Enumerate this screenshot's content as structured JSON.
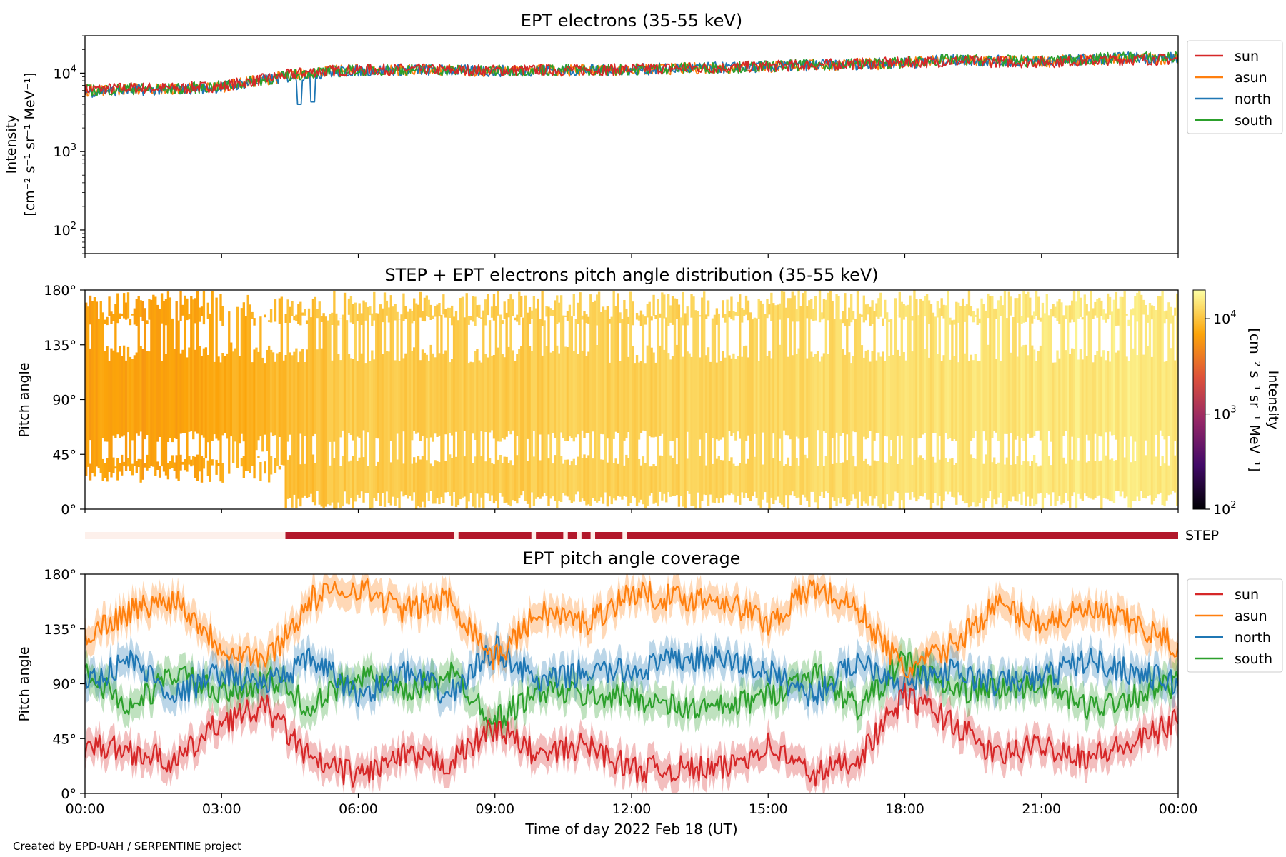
{
  "figure": {
    "credit": "Created by EPD-UAH / SERPENTINE project",
    "xlabel": "Time of day 2022 Feb 18 (UT)",
    "time_ticks": [
      "00:00",
      "03:00",
      "06:00",
      "09:00",
      "12:00",
      "15:00",
      "18:00",
      "21:00",
      "00:00"
    ]
  },
  "chart_data": [
    {
      "type": "line",
      "title": "EPT electrons (35-55 keV)",
      "ylabel_line1": "Intensity",
      "ylabel_line2": "[cm⁻² s⁻¹ sr⁻¹ MeV⁻¹]",
      "yscale": "log",
      "ylim": [
        50,
        30000
      ],
      "yticks": [
        {
          "value": 100,
          "base": "10",
          "exp": "2"
        },
        {
          "value": 1000,
          "base": "10",
          "exp": "3"
        },
        {
          "value": 10000,
          "base": "10",
          "exp": "4"
        }
      ],
      "x_hours": [
        0,
        1,
        2,
        3,
        4,
        4.5,
        5,
        6,
        7,
        8,
        9,
        10,
        11,
        12,
        13,
        14,
        15,
        16,
        17,
        18,
        19,
        20,
        21,
        22,
        23,
        24
      ],
      "series": [
        {
          "name": "sun",
          "color": "#d62728",
          "values": [
            6200,
            6500,
            6400,
            6800,
            8500,
            9600,
            10500,
            11000,
            11200,
            11000,
            10800,
            11000,
            11000,
            11200,
            11600,
            11800,
            12200,
            12800,
            13200,
            13600,
            14200,
            14000,
            13800,
            14500,
            15000,
            15000
          ]
        },
        {
          "name": "asun",
          "color": "#ff7f0e",
          "values": [
            6000,
            6300,
            6300,
            6700,
            8400,
            9400,
            10400,
            10900,
            11000,
            10900,
            10700,
            10900,
            10800,
            11100,
            11400,
            11700,
            12000,
            12600,
            13000,
            13400,
            14600,
            14200,
            14000,
            14800,
            15400,
            15200
          ]
        },
        {
          "name": "north",
          "color": "#1f77b4",
          "values": [
            5800,
            6100,
            6200,
            6600,
            8200,
            9000,
            9800,
            10800,
            11000,
            10900,
            10600,
            10900,
            10900,
            11100,
            11500,
            11700,
            12100,
            12700,
            13100,
            13500,
            14800,
            14300,
            14100,
            15000,
            15800,
            15600
          ]
        },
        {
          "name": "south",
          "color": "#2ca02c",
          "values": [
            6000,
            6300,
            6300,
            6800,
            8300,
            9300,
            10200,
            10900,
            11100,
            10900,
            10700,
            11000,
            10900,
            11200,
            11500,
            11800,
            12200,
            12800,
            13200,
            13600,
            14900,
            14400,
            14200,
            15100,
            16000,
            15800
          ]
        }
      ],
      "dips": [
        {
          "hour": 4.7,
          "value": 4000
        },
        {
          "hour": 5.0,
          "value": 4300
        }
      ],
      "legend_position": "right"
    },
    {
      "type": "heatmap",
      "title": "STEP + EPT electrons pitch angle distribution (35-55 keV)",
      "ylabel": "Pitch angle",
      "ylim": [
        0,
        180
      ],
      "yticks": [
        "0°",
        "45°",
        "90°",
        "135°",
        "180°"
      ],
      "colorbar": {
        "label_line1": "Intensity",
        "label_line2": "[cm⁻² s⁻¹ sr⁻¹ MeV⁻¹]",
        "scale": "log",
        "range": [
          100,
          20000
        ],
        "ticks": [
          {
            "value": 100,
            "base": "10",
            "exp": "2"
          },
          {
            "value": 1000,
            "base": "10",
            "exp": "3"
          },
          {
            "value": 10000,
            "base": "10",
            "exp": "4"
          }
        ],
        "colormap": "inferno"
      },
      "gap_hours": [
        [
          2.6,
          4.4
        ]
      ],
      "step_coverage_start_hour": 4.4,
      "x_hours": [
        0,
        2,
        4,
        6,
        8,
        10,
        12,
        14,
        16,
        18,
        20,
        22,
        24
      ],
      "intensity": [
        6500,
        6600,
        8200,
        10800,
        11000,
        11000,
        11500,
        12200,
        12800,
        13800,
        14400,
        15300,
        15400
      ]
    },
    {
      "type": "bar",
      "label": "STEP",
      "color_on": "#b2182b",
      "color_off": "#fdf0eb",
      "on_intervals": [
        [
          4.4,
          8.1
        ],
        [
          8.2,
          9.8
        ],
        [
          9.9,
          10.5
        ],
        [
          10.6,
          10.8
        ],
        [
          10.9,
          11.1
        ],
        [
          11.2,
          11.8
        ],
        [
          11.9,
          24
        ]
      ]
    },
    {
      "type": "line",
      "title": "EPT pitch angle coverage",
      "ylabel": "Pitch angle",
      "ylim": [
        0,
        180
      ],
      "yticks": [
        "0°",
        "45°",
        "90°",
        "135°",
        "180°"
      ],
      "x_hours": [
        0,
        1,
        2,
        3,
        4,
        5,
        6,
        7,
        8,
        9,
        10,
        11,
        12,
        13,
        14,
        15,
        16,
        17,
        18,
        19,
        20,
        21,
        22,
        23,
        24
      ],
      "series": [
        {
          "name": "sun",
          "color": "#d62728",
          "values": [
            40,
            35,
            25,
            60,
            70,
            25,
            15,
            30,
            25,
            55,
            30,
            40,
            20,
            20,
            20,
            40,
            15,
            30,
            80,
            60,
            30,
            40,
            30,
            40,
            60
          ]
        },
        {
          "name": "asun",
          "color": "#ff7f0e",
          "values": [
            130,
            150,
            160,
            120,
            110,
            160,
            170,
            150,
            160,
            110,
            150,
            140,
            165,
            160,
            160,
            140,
            170,
            150,
            100,
            120,
            155,
            140,
            150,
            140,
            120
          ]
        },
        {
          "name": "north",
          "color": "#1f77b4",
          "values": [
            90,
            110,
            80,
            100,
            90,
            110,
            80,
            100,
            80,
            120,
            90,
            100,
            100,
            110,
            110,
            100,
            80,
            110,
            90,
            100,
            90,
            95,
            110,
            100,
            90
          ]
        },
        {
          "name": "south",
          "color": "#2ca02c",
          "values": [
            100,
            70,
            100,
            80,
            95,
            70,
            100,
            80,
            100,
            60,
            85,
            80,
            80,
            70,
            70,
            80,
            100,
            70,
            110,
            85,
            85,
            90,
            70,
            80,
            90
          ]
        }
      ],
      "band_halfwidth": 12,
      "legend_position": "right"
    }
  ]
}
